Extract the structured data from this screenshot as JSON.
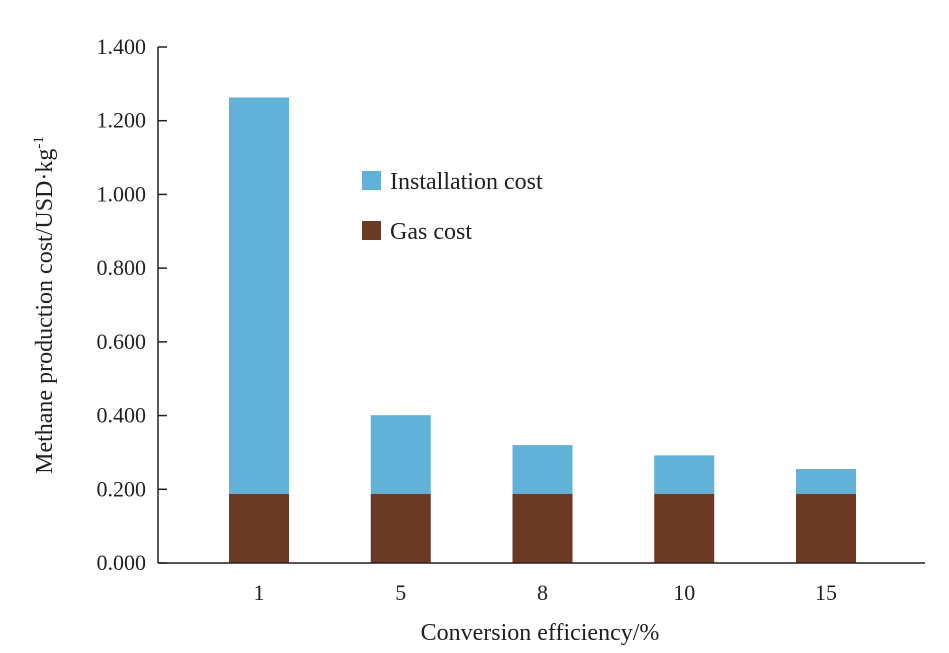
{
  "chart_data": {
    "type": "bar",
    "stacked": true,
    "categories": [
      "1",
      "5",
      "8",
      "10",
      "15"
    ],
    "series": [
      {
        "name": "Gas cost",
        "color": "#6b3a25",
        "values": [
          0.188,
          0.188,
          0.188,
          0.188,
          0.188
        ]
      },
      {
        "name": "Installation cost",
        "color": "#62b1d8",
        "values": [
          1.075,
          0.213,
          0.132,
          0.104,
          0.067
        ]
      }
    ],
    "xlabel": "Conversion efficiency/%",
    "ylabel": "Methane production cost/USD·kg",
    "ylabel_superscript": "-1",
    "ylim": [
      0,
      1.4
    ],
    "yticks": [
      "0.000",
      "0.200",
      "0.400",
      "0.600",
      "0.800",
      "1.000",
      "1.200",
      "1.400"
    ],
    "grid": false,
    "legend_position": "top-center",
    "legend_order": [
      "Installation cost",
      "Gas cost"
    ]
  }
}
